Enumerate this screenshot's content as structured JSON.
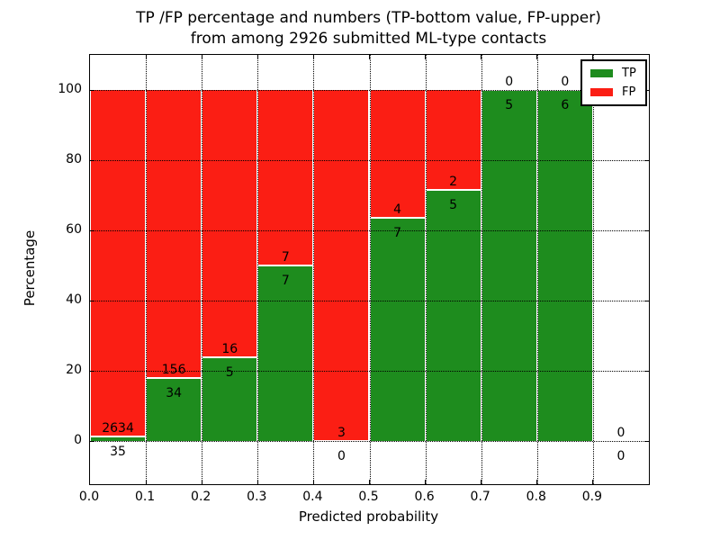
{
  "chart_data": {
    "type": "bar",
    "stacked": "percentage",
    "title_line1": "TP /FP percentage and numbers (TP-bottom value, FP-upper)",
    "title_line2": "from among 2926 submitted ML-type contacts",
    "xlabel": "Predicted probability",
    "ylabel": "Percentage",
    "x_tick_labels": [
      "0.0",
      "0.1",
      "0.2",
      "0.3",
      "0.4",
      "0.5",
      "0.6",
      "0.7",
      "0.8",
      "0.9"
    ],
    "y_tick_values": [
      0,
      20,
      40,
      60,
      80,
      100
    ],
    "xlim": [
      0.0,
      1.0
    ],
    "ylim": [
      -12.3,
      110.0
    ],
    "grid": true,
    "legend_position": "upper right",
    "total_submitted_contacts": 2926,
    "legend": [
      {
        "label": "TP",
        "color": "#1e8c1e"
      },
      {
        "label": "FP",
        "color": "#fb1e14"
      }
    ],
    "bins": [
      {
        "x_range": [
          0.0,
          0.1
        ],
        "tp": 35,
        "fp": 2634
      },
      {
        "x_range": [
          0.1,
          0.2
        ],
        "tp": 34,
        "fp": 156
      },
      {
        "x_range": [
          0.2,
          0.3
        ],
        "tp": 5,
        "fp": 16
      },
      {
        "x_range": [
          0.3,
          0.4
        ],
        "tp": 7,
        "fp": 7
      },
      {
        "x_range": [
          0.4,
          0.5
        ],
        "tp": 0,
        "fp": 3
      },
      {
        "x_range": [
          0.5,
          0.6
        ],
        "tp": 7,
        "fp": 4
      },
      {
        "x_range": [
          0.6,
          0.7
        ],
        "tp": 5,
        "fp": 2
      },
      {
        "x_range": [
          0.7,
          0.8
        ],
        "tp": 5,
        "fp": 0
      },
      {
        "x_range": [
          0.8,
          0.9
        ],
        "tp": 6,
        "fp": 0
      },
      {
        "x_range": [
          0.9,
          1.0
        ],
        "tp": 0,
        "fp": 0
      }
    ]
  }
}
